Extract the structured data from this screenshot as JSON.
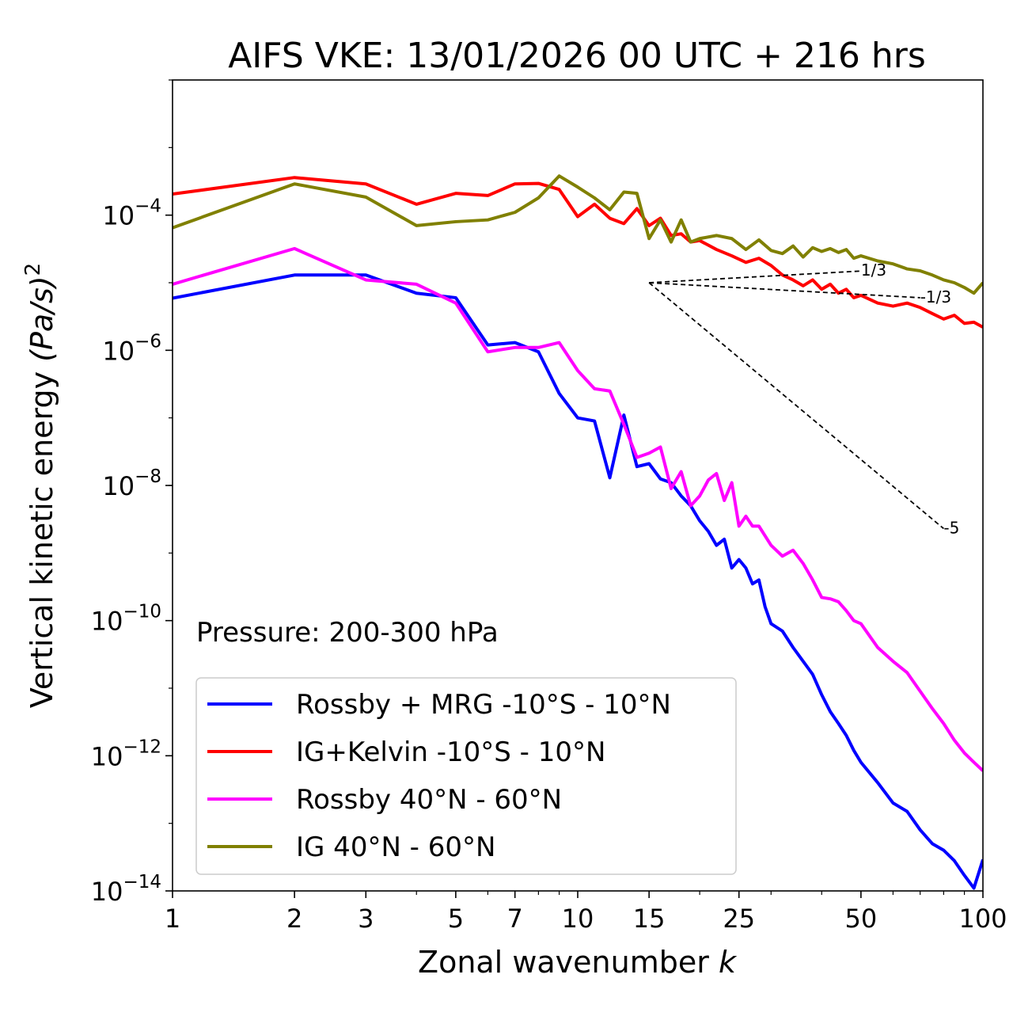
{
  "chart_data": {
    "type": "line",
    "title": "AIFS VKE: 13/01/2026 00 UTC + 216 hrs",
    "xlabel": "Zonal wavenumber",
    "xlabel_var": "k",
    "ylabel_prefix": "Vertical kinetic energy ",
    "ylabel_unit": "(Pa/s)",
    "ylabel_power": "2",
    "xscale": "log",
    "yscale": "log",
    "xlim": [
      1,
      100
    ],
    "ylim": [
      1e-14,
      0.01
    ],
    "xticks": [
      1,
      2,
      3,
      5,
      7,
      10,
      15,
      25,
      50,
      100
    ],
    "xtick_labels": [
      "1",
      "2",
      "3",
      "5",
      "7",
      "10",
      "15",
      "25",
      "50",
      "100"
    ],
    "yticks": [
      {
        "value": 1e-14,
        "base": "10",
        "exp": "−14"
      },
      {
        "value": 1e-12,
        "base": "10",
        "exp": "−12"
      },
      {
        "value": 1e-10,
        "base": "10",
        "exp": "−10"
      },
      {
        "value": 1e-08,
        "base": "10",
        "exp": "−8"
      },
      {
        "value": 1e-06,
        "base": "10",
        "exp": "−6"
      },
      {
        "value": 0.0001,
        "base": "10",
        "exp": "−4"
      }
    ],
    "annotation": "Pressure: 200-300 hPa",
    "legend_position": "lower-left",
    "reference_lines": [
      {
        "label": "1/3",
        "x": [
          15,
          50
        ],
        "y": [
          1e-05,
          1.49e-05
        ]
      },
      {
        "label": "-1/3",
        "x": [
          15,
          70
        ],
        "y": [
          1e-05,
          6e-06
        ]
      },
      {
        "label": "-5",
        "x": [
          15,
          80
        ],
        "y": [
          1e-05,
          2.3e-09
        ]
      }
    ],
    "series": [
      {
        "name": "Rossby + MRG -10°S - 10°N",
        "color": "#0000ff",
        "x": [
          1,
          2,
          3,
          4,
          5,
          6,
          7,
          8,
          9,
          10,
          11,
          12,
          13,
          14,
          15,
          16,
          17,
          18,
          19,
          20,
          21,
          22,
          23,
          24,
          25,
          26,
          27,
          28,
          29,
          30,
          32,
          34,
          36,
          38,
          40,
          42,
          44,
          46,
          48,
          50,
          55,
          60,
          65,
          70,
          75,
          80,
          85,
          90,
          95,
          100
        ],
        "y": [
          5.9e-06,
          1.3e-05,
          1.3e-05,
          7e-06,
          6e-06,
          1.2e-06,
          1.3e-06,
          9.5e-07,
          2.3e-07,
          1e-07,
          9e-08,
          1.3e-08,
          1.1e-07,
          1.9e-08,
          2.1e-08,
          1.25e-08,
          1.1e-08,
          7e-09,
          5e-09,
          3e-09,
          2.1e-09,
          1.3e-09,
          1.6e-09,
          6e-10,
          8e-10,
          6e-10,
          3.5e-10,
          4e-10,
          1.6e-10,
          9e-11,
          7e-11,
          4e-11,
          2.5e-11,
          1.6e-11,
          8e-12,
          4.5e-12,
          3e-12,
          2e-12,
          1.2e-12,
          8e-13,
          4e-13,
          2e-13,
          1.5e-13,
          8e-14,
          5e-14,
          4e-14,
          2.8e-14,
          1.7e-14,
          1.1e-14,
          2.9e-14
        ]
      },
      {
        "name": "IG+Kelvin -10°S - 10°N",
        "color": "#ff0000",
        "x": [
          1,
          2,
          3,
          4,
          5,
          6,
          7,
          8,
          9,
          10,
          11,
          12,
          13,
          14,
          15,
          16,
          17,
          18,
          19,
          20,
          22,
          24,
          26,
          28,
          30,
          32,
          34,
          36,
          38,
          40,
          42,
          44,
          46,
          48,
          50,
          55,
          60,
          65,
          70,
          75,
          80,
          85,
          90,
          95,
          100
        ],
        "y": [
          0.000205,
          0.00036,
          0.00029,
          0.000145,
          0.00021,
          0.000195,
          0.00029,
          0.000295,
          0.00024,
          9.5e-05,
          0.000145,
          9e-05,
          7.5e-05,
          0.000125,
          7e-05,
          9e-05,
          5e-05,
          5.3e-05,
          4e-05,
          4.2e-05,
          3.1e-05,
          2.5e-05,
          2e-05,
          2.3e-05,
          1.8e-05,
          1.3e-05,
          1.1e-05,
          9e-06,
          1.1e-05,
          8e-06,
          9.5e-06,
          7e-06,
          8e-06,
          6e-06,
          6.5e-06,
          5e-06,
          4.5e-06,
          5e-06,
          4.3e-06,
          3.5e-06,
          2.9e-06,
          3.3e-06,
          2.5e-06,
          2.6e-06,
          2.2e-06
        ]
      },
      {
        "name": "Rossby 40°N - 60°N",
        "color": "#ff00ff",
        "x": [
          1,
          2,
          3,
          4,
          5,
          6,
          7,
          8,
          9,
          10,
          11,
          12,
          13,
          14,
          15,
          16,
          17,
          18,
          19,
          20,
          21,
          22,
          23,
          24,
          25,
          26,
          27,
          28,
          30,
          32,
          34,
          36,
          38,
          40,
          42,
          44,
          46,
          48,
          50,
          55,
          60,
          65,
          70,
          75,
          80,
          85,
          90,
          95,
          100
        ],
        "y": [
          9.5e-06,
          3.2e-05,
          1.1e-05,
          9.5e-06,
          5e-06,
          9.5e-07,
          1.1e-06,
          1.1e-06,
          1.3e-06,
          5e-07,
          2.7e-07,
          2.5e-07,
          8e-08,
          2.6e-08,
          3e-08,
          3.7e-08,
          9e-09,
          1.6e-08,
          5e-09,
          7e-09,
          1.2e-08,
          1.5e-08,
          6e-09,
          1.1e-08,
          2.5e-09,
          3.5e-09,
          2.5e-09,
          2.5e-09,
          1.3e-09,
          9e-10,
          1.1e-09,
          7e-10,
          4e-10,
          2.2e-10,
          2.1e-10,
          1.9e-10,
          1.4e-10,
          1e-10,
          9e-11,
          4e-11,
          2.5e-11,
          1.7e-11,
          9e-12,
          5e-12,
          3e-12,
          1.7e-12,
          1.1e-12,
          8e-13,
          6e-13
        ]
      },
      {
        "name": "IG 40°N - 60°N",
        "color": "#808000",
        "x": [
          1,
          2,
          3,
          4,
          5,
          6,
          7,
          8,
          9,
          10,
          11,
          12,
          13,
          14,
          15,
          16,
          17,
          18,
          19,
          20,
          22,
          24,
          26,
          28,
          30,
          32,
          34,
          36,
          38,
          40,
          42,
          44,
          46,
          48,
          50,
          55,
          60,
          65,
          70,
          75,
          80,
          85,
          90,
          95,
          100
        ],
        "y": [
          6.5e-05,
          0.00029,
          0.000185,
          7e-05,
          8e-05,
          8.5e-05,
          0.00011,
          0.00018,
          0.00038,
          0.00026,
          0.00018,
          0.00012,
          0.00022,
          0.00021,
          4.5e-05,
          8.5e-05,
          4e-05,
          8.5e-05,
          4e-05,
          4.5e-05,
          5e-05,
          4.5e-05,
          3.1e-05,
          4.3e-05,
          3e-05,
          2.7e-05,
          3.5e-05,
          2.4e-05,
          3.3e-05,
          2.9e-05,
          3.2e-05,
          2.8e-05,
          3.1e-05,
          2.3e-05,
          2.5e-05,
          2.1e-05,
          1.9e-05,
          1.6e-05,
          1.5e-05,
          1.3e-05,
          1.1e-05,
          1e-05,
          8.5e-06,
          7e-06,
          1e-05
        ]
      }
    ]
  }
}
